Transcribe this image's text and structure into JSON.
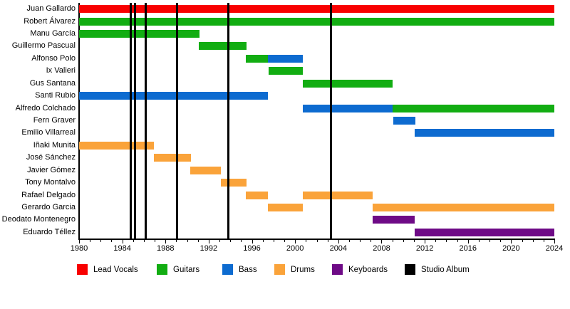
{
  "chart_data": {
    "type": "bar",
    "subtype": "timeline-gantt",
    "title": "",
    "x_axis": {
      "min": 1980,
      "max": 2024,
      "major_tick_step": 4,
      "minor_tick_step": 1,
      "tick_labels": [
        "1980",
        "1984",
        "1988",
        "1992",
        "1996",
        "2000",
        "2004",
        "2008",
        "2012",
        "2016",
        "2020",
        "2024"
      ]
    },
    "grid": "off",
    "legend_position": "bottom",
    "colors": {
      "lead_vocals": "#f80000",
      "guitars": "#12ad12",
      "bass": "#0d6bd0",
      "drums": "#faa33a",
      "keyboards": "#6e0a86",
      "studio_album": "#000000"
    },
    "members": [
      {
        "name": "Juan Gallardo",
        "stints": [
          {
            "role": "lead_vocals",
            "start": 1980,
            "end": 2024
          }
        ]
      },
      {
        "name": "Robert Álvarez",
        "stints": [
          {
            "role": "guitars",
            "start": 1980,
            "end": 2024
          }
        ]
      },
      {
        "name": "Manu García",
        "stints": [
          {
            "role": "guitars",
            "start": 1980,
            "end": 1991.15
          }
        ]
      },
      {
        "name": "Guillermo Pascual",
        "stints": [
          {
            "role": "guitars",
            "start": 1991.1,
            "end": 1995.5
          }
        ]
      },
      {
        "name": "Alfonso Polo",
        "stints": [
          {
            "role": "guitars",
            "start": 1995.45,
            "end": 1997.5
          },
          {
            "role": "bass",
            "start": 1997.5,
            "end": 2000.7
          }
        ]
      },
      {
        "name": "Ix Valieri",
        "stints": [
          {
            "role": "guitars",
            "start": 1997.55,
            "end": 2000.7
          }
        ]
      },
      {
        "name": "Gus Santana",
        "stints": [
          {
            "role": "guitars",
            "start": 2000.7,
            "end": 2009.05
          }
        ]
      },
      {
        "name": "Santi Rubio",
        "stints": [
          {
            "role": "bass",
            "start": 1980,
            "end": 1997.5
          }
        ]
      },
      {
        "name": "Alfredo Colchado",
        "stints": [
          {
            "role": "bass",
            "start": 2000.7,
            "end": 2009.05
          },
          {
            "role": "guitars",
            "start": 2009.05,
            "end": 2024
          }
        ]
      },
      {
        "name": "Fern Graver",
        "stints": [
          {
            "role": "bass",
            "start": 2009.1,
            "end": 2011.15
          }
        ]
      },
      {
        "name": "Emilio Villarreal",
        "stints": [
          {
            "role": "bass",
            "start": 2011.1,
            "end": 2024
          }
        ]
      },
      {
        "name": "Iñaki Munita",
        "stints": [
          {
            "role": "drums",
            "start": 1980,
            "end": 1986.95
          }
        ]
      },
      {
        "name": "José Sánchez",
        "stints": [
          {
            "role": "drums",
            "start": 1986.9,
            "end": 1990.35
          }
        ]
      },
      {
        "name": "Javier Gómez",
        "stints": [
          {
            "role": "drums",
            "start": 1990.3,
            "end": 1993.15
          }
        ]
      },
      {
        "name": "Tony Montalvo",
        "stints": [
          {
            "role": "drums",
            "start": 1993.1,
            "end": 1995.5
          }
        ]
      },
      {
        "name": "Rafael Delgado",
        "stints": [
          {
            "role": "drums",
            "start": 1995.45,
            "end": 1997.5
          },
          {
            "role": "drums",
            "start": 2000.7,
            "end": 2007.2
          }
        ]
      },
      {
        "name": "Gerardo Garcia",
        "stints": [
          {
            "role": "drums",
            "start": 1997.5,
            "end": 2000.7
          },
          {
            "role": "drums",
            "start": 2007.2,
            "end": 2024
          }
        ]
      },
      {
        "name": "Deodato Montenegro",
        "stints": [
          {
            "role": "keyboards",
            "start": 2007.15,
            "end": 2011.1
          }
        ]
      },
      {
        "name": "Eduardo Téllez",
        "stints": [
          {
            "role": "keyboards",
            "start": 2011.1,
            "end": 2024
          }
        ]
      }
    ],
    "studio_albums": [
      1984.75,
      1985.2,
      1986.2,
      1989.1,
      1993.8,
      2003.3
    ],
    "legend": [
      {
        "label": "Lead Vocals",
        "role": "lead_vocals"
      },
      {
        "label": "Guitars",
        "role": "guitars"
      },
      {
        "label": "Bass",
        "role": "bass"
      },
      {
        "label": "Drums",
        "role": "drums"
      },
      {
        "label": "Keyboards",
        "role": "keyboards"
      },
      {
        "label": "Studio Album",
        "role": "studio_album"
      }
    ]
  }
}
